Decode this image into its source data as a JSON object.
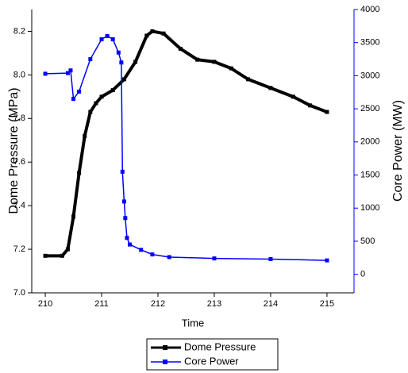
{
  "chart_data": {
    "type": "line",
    "x_label": "Time",
    "y_label": "Dome Pressure (MPa)",
    "y2_label": "Core Power (MW)",
    "xlim": [
      209.76,
      215.48
    ],
    "xticks": [
      210,
      211,
      212,
      213,
      214,
      215
    ],
    "ylim": [
      7.0,
      8.3
    ],
    "yticks": [
      {
        "value": 7,
        "label": "7.0"
      },
      7.2,
      7.4,
      7.6,
      7.8,
      {
        "value": 8,
        "label": "8.0"
      },
      8.2
    ],
    "y2lim": [
      -280,
      4000
    ],
    "y2ticks": [
      0,
      500,
      1000,
      1500,
      2000,
      2500,
      3000,
      3500,
      4000
    ],
    "y2_color": "#0000ff",
    "series": [
      {
        "name": "Dome Pressure",
        "color": "#000000",
        "x": [
          210.0,
          210.3,
          210.4,
          210.5,
          210.6,
          210.7,
          210.8,
          210.9,
          211.0,
          211.2,
          211.4,
          211.6,
          211.8,
          211.9,
          212.1,
          212.4,
          212.7,
          213.0,
          213.3,
          213.6,
          214.0,
          214.4,
          214.7,
          215.0
        ],
        "values": [
          7.17,
          7.17,
          7.2,
          7.35,
          7.55,
          7.72,
          7.83,
          7.87,
          7.9,
          7.93,
          7.98,
          8.06,
          8.18,
          8.2,
          8.19,
          8.12,
          8.07,
          8.06,
          8.03,
          7.98,
          7.94,
          7.9,
          7.86,
          7.83
        ]
      },
      {
        "name": "Core Power",
        "color": "#0000ff",
        "axis": "y2",
        "x": [
          210.0,
          210.4,
          210.45,
          210.5,
          210.6,
          210.8,
          211.0,
          211.1,
          211.2,
          211.3,
          211.35,
          211.37,
          211.4,
          211.42,
          211.45,
          211.5,
          211.7,
          211.9,
          212.2,
          213.0,
          214.0,
          215.0
        ],
        "values": [
          3030,
          3040,
          3080,
          2650,
          2760,
          3250,
          3550,
          3600,
          3550,
          3350,
          3200,
          1550,
          1100,
          850,
          550,
          450,
          370,
          300,
          260,
          240,
          230,
          210
        ]
      }
    ]
  }
}
